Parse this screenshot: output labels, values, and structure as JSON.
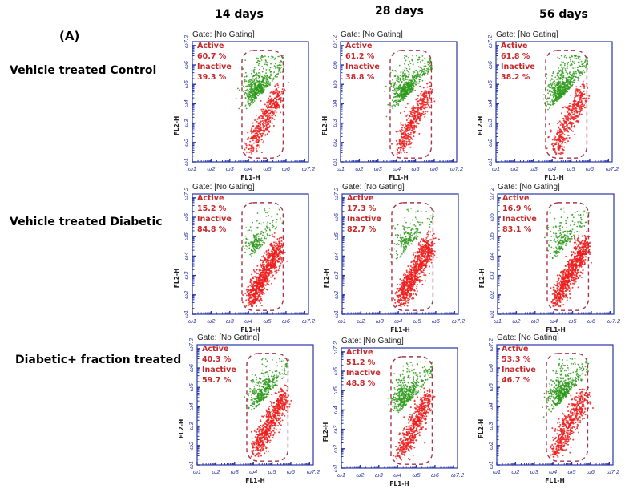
{
  "figure": {
    "panel_label": "(A)",
    "columns": [
      "14 days",
      "28 days",
      "56 days"
    ],
    "rows": [
      "Vehicle treated Control",
      "Vehicle treated Diabetic",
      "Diabetic+ fraction treated"
    ]
  },
  "colors": {
    "active": "#2e9a1a",
    "inactive": "#ee1c1c",
    "stats_text": "#c8282a",
    "gate_outline": "#a8344a",
    "axis": "#2a36a8"
  },
  "chart_data": {
    "type": "scatter",
    "title": "Flow cytometry (FL1-H vs FL2-H), gate: No Gating",
    "xlabel": "FL1-H",
    "ylabel": "FL2-H",
    "scale": "log10",
    "xlim": [
      1,
      7.2
    ],
    "ylim": [
      1,
      7.2
    ],
    "x_tick_labels": [
      "10^1",
      "10^2",
      "10^3",
      "10^4",
      "10^5",
      "10^6",
      "10^7.2"
    ],
    "y_tick_labels": [
      "10^1",
      "10^2",
      "10^3",
      "10^4",
      "10^5",
      "10^6",
      "10^7.2"
    ],
    "gate_label": "Gate: [No Gating]",
    "series_labels": {
      "active": "Active",
      "inactive": "Inactive"
    },
    "panels": [
      {
        "row": "Vehicle treated Control",
        "column": "14 days",
        "active_pct": "60.7 %",
        "inactive_pct": "39.3 %"
      },
      {
        "row": "Vehicle treated Control",
        "column": "28 days",
        "active_pct": "61.2 %",
        "inactive_pct": "38.8 %"
      },
      {
        "row": "Vehicle treated Control",
        "column": "56 days",
        "active_pct": "61.8 %",
        "inactive_pct": "38.2 %"
      },
      {
        "row": "Vehicle treated Diabetic",
        "column": "14 days",
        "active_pct": "15.2 %",
        "inactive_pct": "84.8 %"
      },
      {
        "row": "Vehicle treated Diabetic",
        "column": "28 days",
        "active_pct": "17.3 %",
        "inactive_pct": "82.7 %"
      },
      {
        "row": "Vehicle treated Diabetic",
        "column": "56 days",
        "active_pct": "16.9 %",
        "inactive_pct": "83.1 %"
      },
      {
        "row": "Diabetic+ fraction treated",
        "column": "14 days",
        "active_pct": "40.3 %",
        "inactive_pct": "59.7 %"
      },
      {
        "row": "Diabetic+ fraction treated",
        "column": "28 days",
        "active_pct": "51.2 %",
        "inactive_pct": "48.8 %"
      },
      {
        "row": "Diabetic+ fraction treated",
        "column": "56 days",
        "active_pct": "53.3 %",
        "inactive_pct": "46.7 %"
      }
    ]
  }
}
